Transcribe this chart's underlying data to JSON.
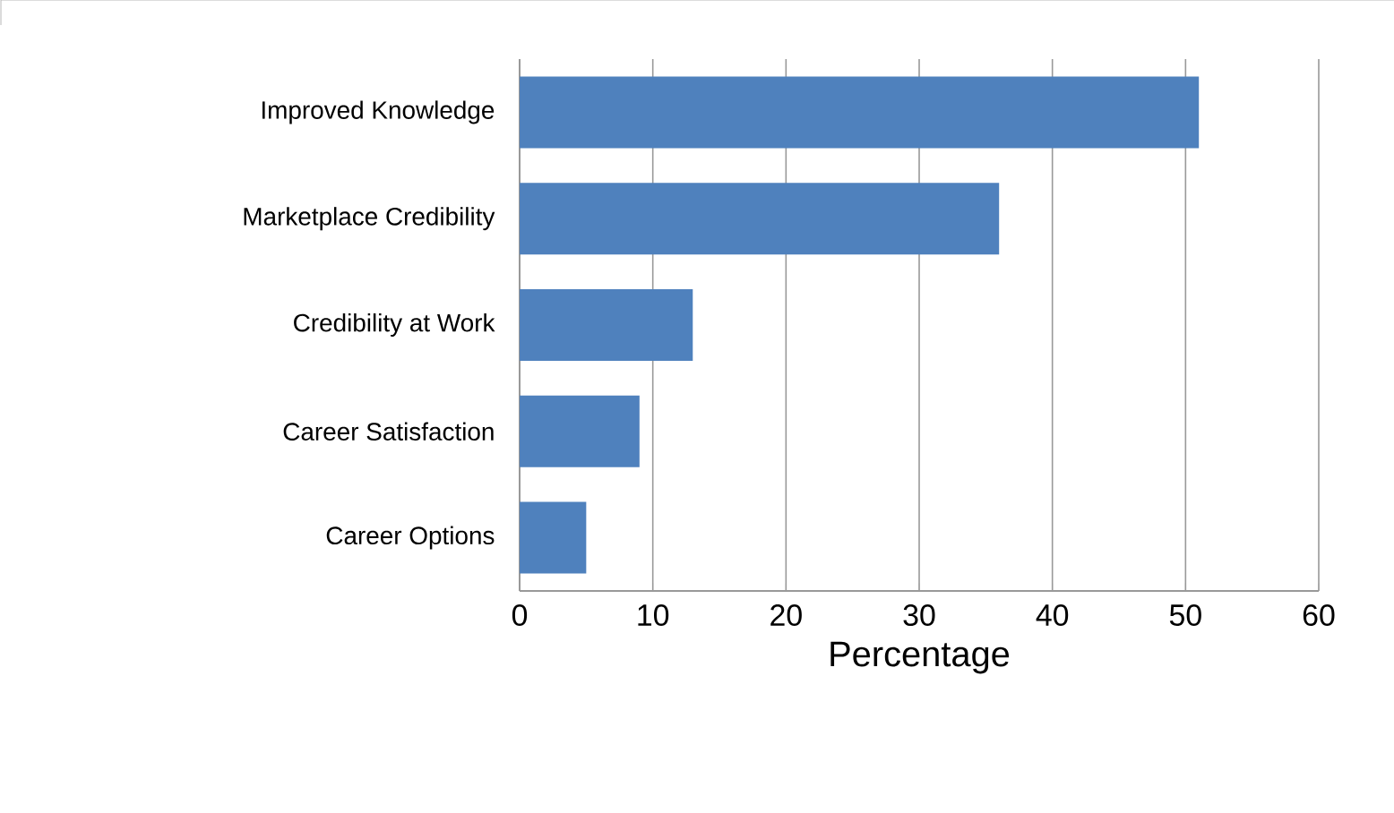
{
  "chart_data": {
    "type": "bar",
    "orientation": "horizontal",
    "xlabel": "Percentage",
    "categories": [
      "Improved Knowledge",
      "Marketplace Credibility",
      "Credibility at Work",
      "Career Satisfaction",
      "Career Options"
    ],
    "values": [
      51,
      36,
      13,
      9,
      5
    ],
    "color": "#4f81bd",
    "xlim": [
      0,
      60
    ],
    "xticks": [
      0,
      10,
      20,
      30,
      40,
      50,
      60
    ],
    "grid": "x"
  }
}
